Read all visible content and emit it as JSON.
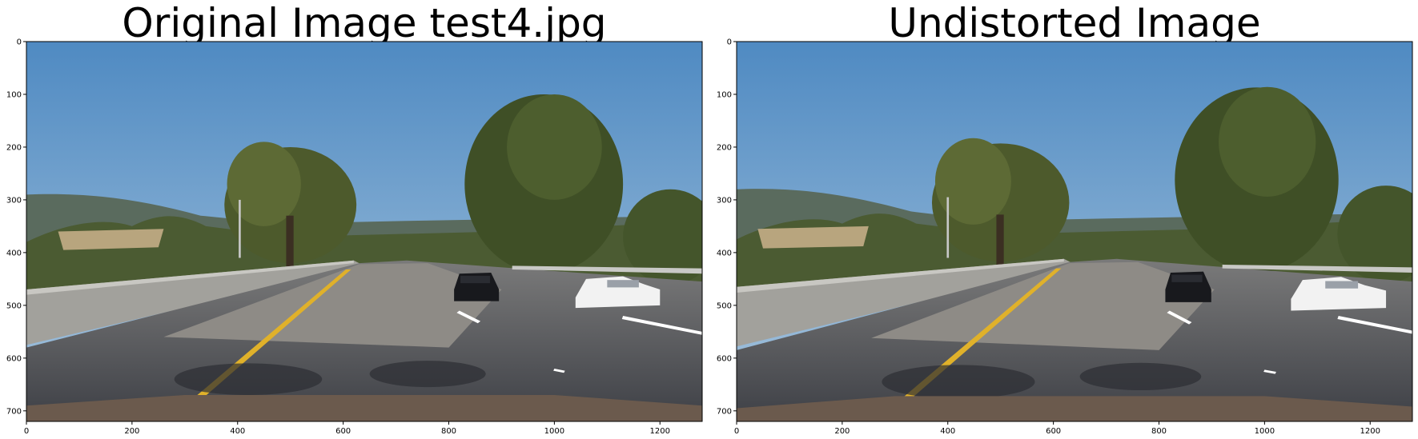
{
  "chart_data": [
    {
      "type": "image",
      "title": "Original Image test4.jpg",
      "xlim": [
        0,
        1280
      ],
      "ylim": [
        720,
        0
      ],
      "xticks": [
        0,
        200,
        400,
        600,
        800,
        1000,
        1200
      ],
      "yticks": [
        0,
        100,
        200,
        300,
        400,
        500,
        600,
        700
      ],
      "xlabel": "",
      "ylabel": "",
      "grid": false
    },
    {
      "type": "image",
      "title": "Undistorted Image",
      "xlim": [
        0,
        1280
      ],
      "ylim": [
        720,
        0
      ],
      "xticks": [
        0,
        200,
        400,
        600,
        800,
        1000,
        1200
      ],
      "yticks": [
        0,
        100,
        200,
        300,
        400,
        500,
        600,
        700
      ],
      "xlabel": "",
      "ylabel": "",
      "grid": false
    }
  ],
  "colors": {
    "sky_top": "#4f8ac2",
    "sky_bottom": "#a9c6de",
    "hills": "#59695a",
    "trees": "#3f4f2a",
    "grass": "#b8a57e",
    "road": "#4a4c52",
    "road_light": "#8d8a86",
    "lane_yellow": "#e0b12a",
    "lane_white": "#ffffff",
    "barrier": "#9b9b98",
    "car_black": "#18191d",
    "car_white": "#f2f2f2",
    "hood": "#6b5a4d"
  }
}
